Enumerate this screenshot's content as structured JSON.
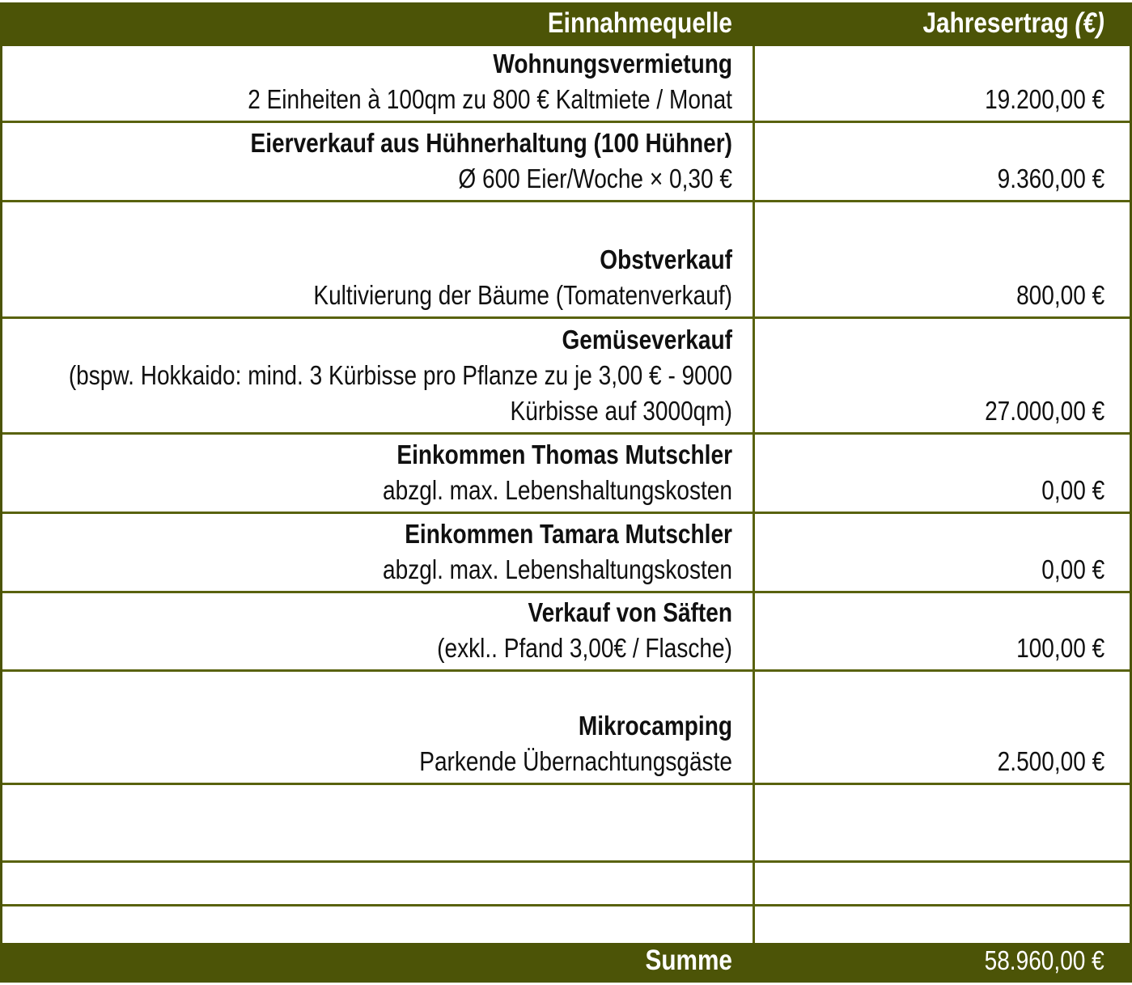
{
  "colors": {
    "olive": "#4c5407",
    "grid_line": "#59620e",
    "header_text": "#ffffff",
    "body_text": "#101010"
  },
  "header": {
    "source_label": "Einnahmequelle",
    "yield_label": "Jahresertrag",
    "yield_unit": "(€)"
  },
  "rows": [
    {
      "title": "Wohnungsvermietung",
      "subtitle": "2 Einheiten à 100qm zu 800 € Kaltmiete / Monat",
      "value": "19.200,00 €"
    },
    {
      "title": "Eierverkauf aus Hühnerhaltung (100 Hühner)",
      "subtitle": "Ø 600 Eier/Woche × 0,30 €",
      "value": "9.360,00 €"
    },
    {
      "title": "Obstverkauf",
      "subtitle": "Kultivierung der Bäume (Tomatenverkauf)",
      "value": "800,00 €"
    },
    {
      "title": "Gemüseverkauf",
      "subtitle": "(bspw. Hokkaido: mind. 3 Kürbisse pro Pflanze zu je 3,00 € - 9000 Kürbisse auf 3000qm)",
      "value": "27.000,00 €"
    },
    {
      "title": "Einkommen Thomas Mutschler",
      "subtitle": "abzgl. max. Lebenshaltungskosten",
      "value": "0,00 €"
    },
    {
      "title": "Einkommen Tamara Mutschler",
      "subtitle": "abzgl. max. Lebenshaltungskosten",
      "value": "0,00 €"
    },
    {
      "title": "Verkauf von Säften",
      "subtitle": "(exkl.. Pfand 3,00€ / Flasche)",
      "value": "100,00 €"
    },
    {
      "title": "Mikrocamping",
      "subtitle": "Parkende Übernachtungsgäste",
      "value": "2.500,00 €"
    },
    {
      "title": "",
      "subtitle": "",
      "value": ""
    },
    {
      "title": "",
      "subtitle": "",
      "value": ""
    },
    {
      "title": "",
      "subtitle": "",
      "value": ""
    }
  ],
  "footer": {
    "label": "Summe",
    "value": "58.960,00 €"
  }
}
